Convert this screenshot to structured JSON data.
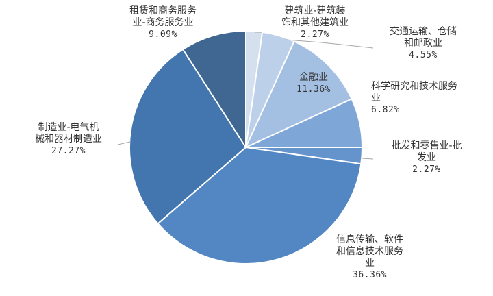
{
  "chart_data": {
    "type": "pie",
    "title": "",
    "start_angle_deg": 0,
    "direction": "clockwise",
    "slices": [
      {
        "name": "建筑业-建筑装饰和其他建筑业",
        "lines": [
          "建筑业-建筑装",
          "饰和其他建筑业"
        ],
        "value": 2.27,
        "label": "2.27%",
        "color": "#d5e0ef"
      },
      {
        "name": "交通运输、仓储和邮政业",
        "lines": [
          "交通运输、仓储",
          "和邮政业"
        ],
        "value": 4.55,
        "label": "4.55%",
        "color": "#bcd0ea"
      },
      {
        "name": "金融业",
        "lines": [
          "金融业"
        ],
        "value": 11.36,
        "label": "11.36%",
        "color": "#a3bfe2"
      },
      {
        "name": "科学研究和技术服务业",
        "lines": [
          "科学研究和技术服务",
          "业"
        ],
        "value": 6.82,
        "label": "6.82%",
        "color": "#7ea6d6"
      },
      {
        "name": "批发和零售业-批发业",
        "lines": [
          "批发和零售业-批",
          "发业"
        ],
        "value": 2.27,
        "label": "2.27%",
        "color": "#6594cc"
      },
      {
        "name": "信息传输、软件和信息技术服务业",
        "lines": [
          "信息传输、软件",
          "和信息技术服务",
          "业"
        ],
        "value": 36.36,
        "label": "36.36%",
        "color": "#5287c3"
      },
      {
        "name": "制造业-电气机械和器材制造业",
        "lines": [
          "制造业-电气机",
          "械和器材制造业"
        ],
        "value": 27.27,
        "label": "27.27%",
        "color": "#4375ae"
      },
      {
        "name": "租赁和商务服务业-商务服务业",
        "lines": [
          "租赁和商务服务",
          "业-商务服务业"
        ],
        "value": 9.09,
        "label": "9.09%",
        "color": "#3f6792"
      }
    ]
  }
}
